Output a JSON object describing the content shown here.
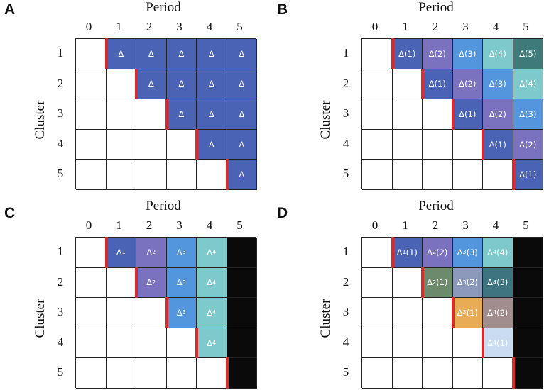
{
  "colors": {
    "d1": "#4a63b5",
    "d2": "#7a72bf",
    "d3": "#5496de",
    "d4": "#7ec9cc",
    "d5": "#3f7a7a",
    "olive": "#6e8a6c",
    "greyblue": "#8d99bb",
    "darkteal": "#3e7380",
    "orange": "#e8ac57",
    "mauve": "#a18d8d",
    "pale": "#c9dcf0",
    "black": "#0a0a0a",
    "adoption_marker": "#d92b2b"
  },
  "panels": [
    {
      "letter": "A",
      "period_title": "Period",
      "cluster_title": "Cluster",
      "columns": [
        "0",
        "1",
        "2",
        "3",
        "4",
        "5"
      ],
      "rows": [
        "1",
        "2",
        "3",
        "4",
        "5"
      ],
      "cells": [
        [
          {
            "t": "",
            "c": ""
          },
          {
            "t": "Δ",
            "c": "d1",
            "a": 1
          },
          {
            "t": "Δ",
            "c": "d1"
          },
          {
            "t": "Δ",
            "c": "d1"
          },
          {
            "t": "Δ",
            "c": "d1"
          },
          {
            "t": "Δ",
            "c": "d1"
          }
        ],
        [
          {
            "t": "",
            "c": ""
          },
          {
            "t": "",
            "c": ""
          },
          {
            "t": "Δ",
            "c": "d1",
            "a": 1
          },
          {
            "t": "Δ",
            "c": "d1"
          },
          {
            "t": "Δ",
            "c": "d1"
          },
          {
            "t": "Δ",
            "c": "d1"
          }
        ],
        [
          {
            "t": "",
            "c": ""
          },
          {
            "t": "",
            "c": ""
          },
          {
            "t": "",
            "c": ""
          },
          {
            "t": "Δ",
            "c": "d1",
            "a": 1
          },
          {
            "t": "Δ",
            "c": "d1"
          },
          {
            "t": "Δ",
            "c": "d1"
          }
        ],
        [
          {
            "t": "",
            "c": ""
          },
          {
            "t": "",
            "c": ""
          },
          {
            "t": "",
            "c": ""
          },
          {
            "t": "",
            "c": ""
          },
          {
            "t": "Δ",
            "c": "d1",
            "a": 1
          },
          {
            "t": "Δ",
            "c": "d1"
          }
        ],
        [
          {
            "t": "",
            "c": ""
          },
          {
            "t": "",
            "c": ""
          },
          {
            "t": "",
            "c": ""
          },
          {
            "t": "",
            "c": ""
          },
          {
            "t": "",
            "c": ""
          },
          {
            "t": "Δ",
            "c": "d1",
            "a": 1
          }
        ]
      ]
    },
    {
      "letter": "B",
      "period_title": "Period",
      "cluster_title": "Cluster",
      "columns": [
        "0",
        "1",
        "2",
        "3",
        "4",
        "5"
      ],
      "rows": [
        "1",
        "2",
        "3",
        "4",
        "5"
      ],
      "cells": [
        [
          {
            "t": "",
            "c": ""
          },
          {
            "t": "Δ(1)",
            "c": "d1",
            "a": 1
          },
          {
            "t": "Δ(2)",
            "c": "d2"
          },
          {
            "t": "Δ(3)",
            "c": "d3"
          },
          {
            "t": "Δ(4)",
            "c": "d4"
          },
          {
            "t": "Δ(5)",
            "c": "d5"
          }
        ],
        [
          {
            "t": "",
            "c": ""
          },
          {
            "t": "",
            "c": ""
          },
          {
            "t": "Δ(1)",
            "c": "d1",
            "a": 1
          },
          {
            "t": "Δ(2)",
            "c": "d2"
          },
          {
            "t": "Δ(3)",
            "c": "d3"
          },
          {
            "t": "Δ(4)",
            "c": "d4"
          }
        ],
        [
          {
            "t": "",
            "c": ""
          },
          {
            "t": "",
            "c": ""
          },
          {
            "t": "",
            "c": ""
          },
          {
            "t": "Δ(1)",
            "c": "d1",
            "a": 1
          },
          {
            "t": "Δ(2)",
            "c": "d2"
          },
          {
            "t": "Δ(3)",
            "c": "d3"
          }
        ],
        [
          {
            "t": "",
            "c": ""
          },
          {
            "t": "",
            "c": ""
          },
          {
            "t": "",
            "c": ""
          },
          {
            "t": "",
            "c": ""
          },
          {
            "t": "Δ(1)",
            "c": "d1",
            "a": 1
          },
          {
            "t": "Δ(2)",
            "c": "d2"
          }
        ],
        [
          {
            "t": "",
            "c": ""
          },
          {
            "t": "",
            "c": ""
          },
          {
            "t": "",
            "c": ""
          },
          {
            "t": "",
            "c": ""
          },
          {
            "t": "",
            "c": ""
          },
          {
            "t": "Δ(1)",
            "c": "d1",
            "a": 1
          }
        ]
      ]
    },
    {
      "letter": "C",
      "period_title": "Period",
      "cluster_title": "Cluster",
      "columns": [
        "0",
        "1",
        "2",
        "3",
        "4",
        "5"
      ],
      "rows": [
        "1",
        "2",
        "3",
        "4",
        "5"
      ],
      "cells": [
        [
          {
            "t": "",
            "c": ""
          },
          {
            "t": "Δ",
            "s": "1",
            "c": "d1",
            "a": 1
          },
          {
            "t": "Δ",
            "s": "2",
            "c": "d2"
          },
          {
            "t": "Δ",
            "s": "3",
            "c": "d3"
          },
          {
            "t": "Δ",
            "s": "4",
            "c": "d4"
          },
          {
            "t": "",
            "c": "black"
          }
        ],
        [
          {
            "t": "",
            "c": ""
          },
          {
            "t": "",
            "c": ""
          },
          {
            "t": "Δ",
            "s": "2",
            "c": "d2",
            "a": 1
          },
          {
            "t": "Δ",
            "s": "3",
            "c": "d3"
          },
          {
            "t": "Δ",
            "s": "4",
            "c": "d4"
          },
          {
            "t": "",
            "c": "black"
          }
        ],
        [
          {
            "t": "",
            "c": ""
          },
          {
            "t": "",
            "c": ""
          },
          {
            "t": "",
            "c": ""
          },
          {
            "t": "Δ",
            "s": "3",
            "c": "d3",
            "a": 1
          },
          {
            "t": "Δ",
            "s": "4",
            "c": "d4"
          },
          {
            "t": "",
            "c": "black"
          }
        ],
        [
          {
            "t": "",
            "c": ""
          },
          {
            "t": "",
            "c": ""
          },
          {
            "t": "",
            "c": ""
          },
          {
            "t": "",
            "c": ""
          },
          {
            "t": "Δ",
            "s": "4",
            "c": "d4",
            "a": 1
          },
          {
            "t": "",
            "c": "black"
          }
        ],
        [
          {
            "t": "",
            "c": ""
          },
          {
            "t": "",
            "c": ""
          },
          {
            "t": "",
            "c": ""
          },
          {
            "t": "",
            "c": ""
          },
          {
            "t": "",
            "c": ""
          },
          {
            "t": "",
            "c": "black",
            "a": 1
          }
        ]
      ]
    },
    {
      "letter": "D",
      "period_title": "Period",
      "cluster_title": "Cluster",
      "columns": [
        "0",
        "1",
        "2",
        "3",
        "4",
        "5"
      ],
      "rows": [
        "1",
        "2",
        "3",
        "4",
        "5"
      ],
      "cells": [
        [
          {
            "t": "",
            "c": ""
          },
          {
            "t": "Δ",
            "s": "1",
            "e": "(1)",
            "c": "d1",
            "a": 1
          },
          {
            "t": "Δ",
            "s": "2",
            "e": "(2)",
            "c": "d2"
          },
          {
            "t": "Δ",
            "s": "3",
            "e": "(3)",
            "c": "d3"
          },
          {
            "t": "Δ",
            "s": "4",
            "e": "(4)",
            "c": "d4"
          },
          {
            "t": "",
            "c": "black"
          }
        ],
        [
          {
            "t": "",
            "c": ""
          },
          {
            "t": "",
            "c": ""
          },
          {
            "t": "Δ",
            "s": "2",
            "e": "(1)",
            "c": "olive",
            "a": 1
          },
          {
            "t": "Δ",
            "s": "3",
            "e": "(2)",
            "c": "greyblue"
          },
          {
            "t": "Δ",
            "s": "4",
            "e": "(3)",
            "c": "darkteal"
          },
          {
            "t": "",
            "c": "black"
          }
        ],
        [
          {
            "t": "",
            "c": ""
          },
          {
            "t": "",
            "c": ""
          },
          {
            "t": "",
            "c": ""
          },
          {
            "t": "Δ",
            "s": "3",
            "e": "(1)",
            "c": "orange",
            "a": 1
          },
          {
            "t": "Δ",
            "s": "4",
            "e": "(2)",
            "c": "mauve"
          },
          {
            "t": "",
            "c": "black"
          }
        ],
        [
          {
            "t": "",
            "c": ""
          },
          {
            "t": "",
            "c": ""
          },
          {
            "t": "",
            "c": ""
          },
          {
            "t": "",
            "c": ""
          },
          {
            "t": "Δ",
            "s": "4",
            "e": "(1)",
            "c": "pale",
            "a": 1
          },
          {
            "t": "",
            "c": "black"
          }
        ],
        [
          {
            "t": "",
            "c": ""
          },
          {
            "t": "",
            "c": ""
          },
          {
            "t": "",
            "c": ""
          },
          {
            "t": "",
            "c": ""
          },
          {
            "t": "",
            "c": ""
          },
          {
            "t": "",
            "c": "black",
            "a": 1
          }
        ]
      ]
    }
  ]
}
